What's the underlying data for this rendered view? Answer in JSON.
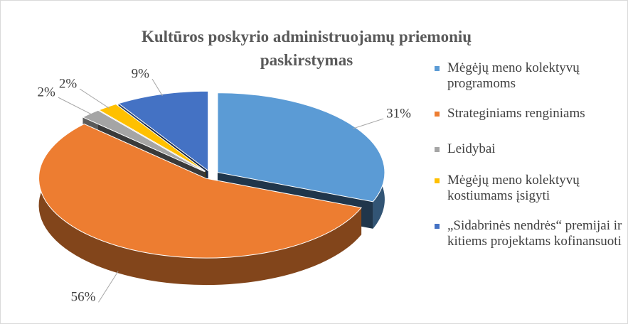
{
  "chart_data": {
    "type": "pie",
    "title": "Kultūros poskyrio administruojamų priemonių paskirstymas",
    "categories": [
      "Mėgėjų meno kolektyvų programoms",
      "Strateginiams renginiams",
      "Leidybai",
      "Mėgėjų meno kolektyvų kostiumams įsigyti",
      "„Sidabrinės nendrės“ premijai ir kitiems projektams  kofinansuoti"
    ],
    "values": [
      31,
      56,
      2,
      2,
      9
    ],
    "value_labels": [
      "31%",
      "56%",
      "2%",
      "2%",
      "9%"
    ],
    "colors": [
      "#5b9bd5",
      "#ed7d31",
      "#a5a5a5",
      "#ffc000",
      "#4472c4"
    ],
    "legend": "right"
  }
}
